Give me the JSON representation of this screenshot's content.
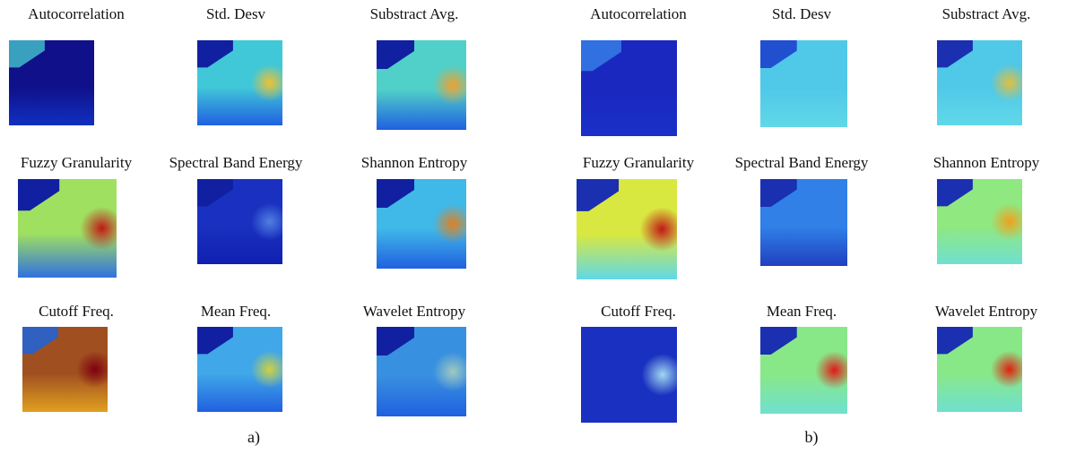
{
  "panels": [
    {
      "caption": "a)",
      "titles": [
        "Autocorrelation",
        "Std. Desv",
        "Substract Avg.",
        "Fuzzy Granularity",
        "Spectral Band Energy",
        "Shannon Entropy",
        "Cutoff Freq.",
        "Mean Freq.",
        "Wavelet Entropy"
      ]
    },
    {
      "caption": "b)",
      "titles": [
        "Autocorrelation",
        "Std. Desv",
        "Substract Avg.",
        "Fuzzy Granularity",
        "Spectral Band Energy",
        "Shannon Entropy",
        "Cutoff Freq.",
        "Mean Freq.",
        "Wavelet Entropy"
      ]
    }
  ]
}
